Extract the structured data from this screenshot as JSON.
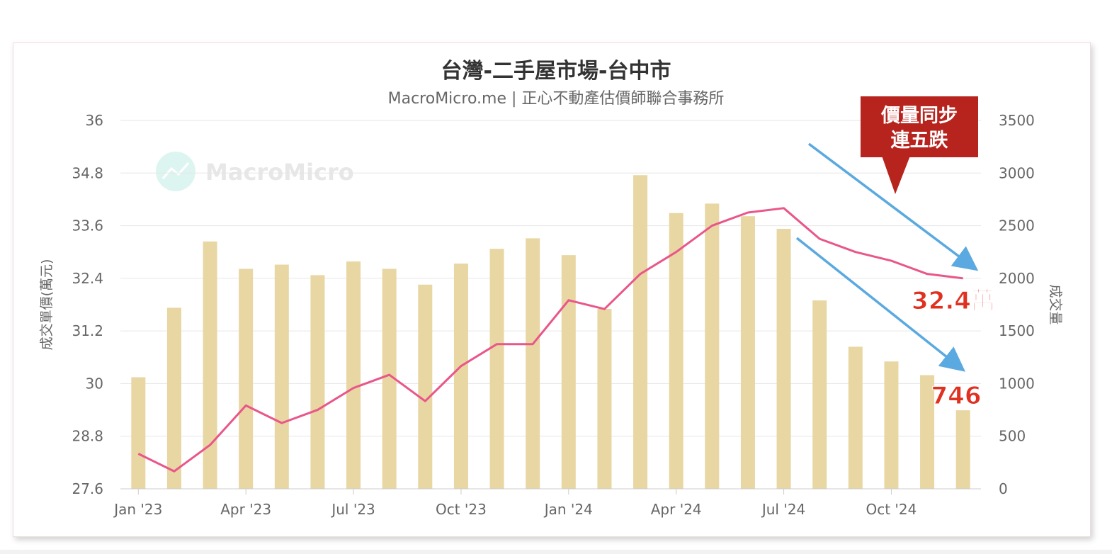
{
  "chart_data": {
    "type": "bar+line",
    "title": "台灣-二手屋市場-台中市",
    "subtitle": "MacroMicro.me | 正心不動產估價師聯合事務所",
    "watermark": "MacroMicro",
    "y_left_label": "成交單價(萬元)",
    "y_right_label": "成交量",
    "y_left_range": [
      27.6,
      36
    ],
    "y_left_ticks": [
      "36",
      "34.8",
      "33.6",
      "32.4",
      "31.2",
      "30",
      "28.8",
      "27.6"
    ],
    "y_right_range": [
      0,
      3500
    ],
    "y_right_ticks": [
      "3500",
      "3000",
      "2500",
      "2000",
      "1500",
      "1000",
      "500",
      "0"
    ],
    "x_ticks": [
      {
        "label": "Jan '23",
        "index": 0
      },
      {
        "label": "Apr '23",
        "index": 3
      },
      {
        "label": "Jul '23",
        "index": 6
      },
      {
        "label": "Oct '23",
        "index": 9
      },
      {
        "label": "Jan '24",
        "index": 12
      },
      {
        "label": "Apr '24",
        "index": 15
      },
      {
        "label": "Jul '24",
        "index": 18
      },
      {
        "label": "Oct '24",
        "index": 21
      }
    ],
    "months": [
      "2023-01",
      "2023-02",
      "2023-03",
      "2023-04",
      "2023-05",
      "2023-06",
      "2023-07",
      "2023-08",
      "2023-09",
      "2023-10",
      "2023-11",
      "2023-12",
      "2024-01",
      "2024-02",
      "2024-03",
      "2024-04",
      "2024-05",
      "2024-06",
      "2024-07",
      "2024-08",
      "2024-09",
      "2024-10",
      "2024-11",
      "2024-12"
    ],
    "series": [
      {
        "name": "成交量",
        "type": "bar",
        "axis": "right",
        "color": "#e8d6a3",
        "values": [
          1060,
          1720,
          2350,
          2090,
          2130,
          2030,
          2160,
          2090,
          1940,
          2140,
          2280,
          2380,
          2220,
          1710,
          2980,
          2620,
          2710,
          2590,
          2470,
          1790,
          1350,
          1210,
          1080,
          746
        ]
      },
      {
        "name": "成交單價",
        "type": "line",
        "axis": "left",
        "color": "#e9568a",
        "values": [
          28.4,
          28.0,
          28.6,
          29.5,
          29.1,
          29.4,
          29.9,
          30.2,
          29.6,
          30.4,
          30.9,
          30.9,
          31.9,
          31.7,
          32.5,
          33.0,
          33.6,
          33.9,
          34.0,
          33.3,
          33.0,
          32.8,
          32.5,
          32.4
        ]
      }
    ],
    "annotations": {
      "callout_text_line1": "價量同步",
      "callout_text_line2": "連五跌",
      "callout_color": "#b7231d",
      "price_label": "32.4萬",
      "volume_label": "746",
      "label_color": "#e03020",
      "arrow_color": "#5aa9e0"
    },
    "grid": true
  }
}
